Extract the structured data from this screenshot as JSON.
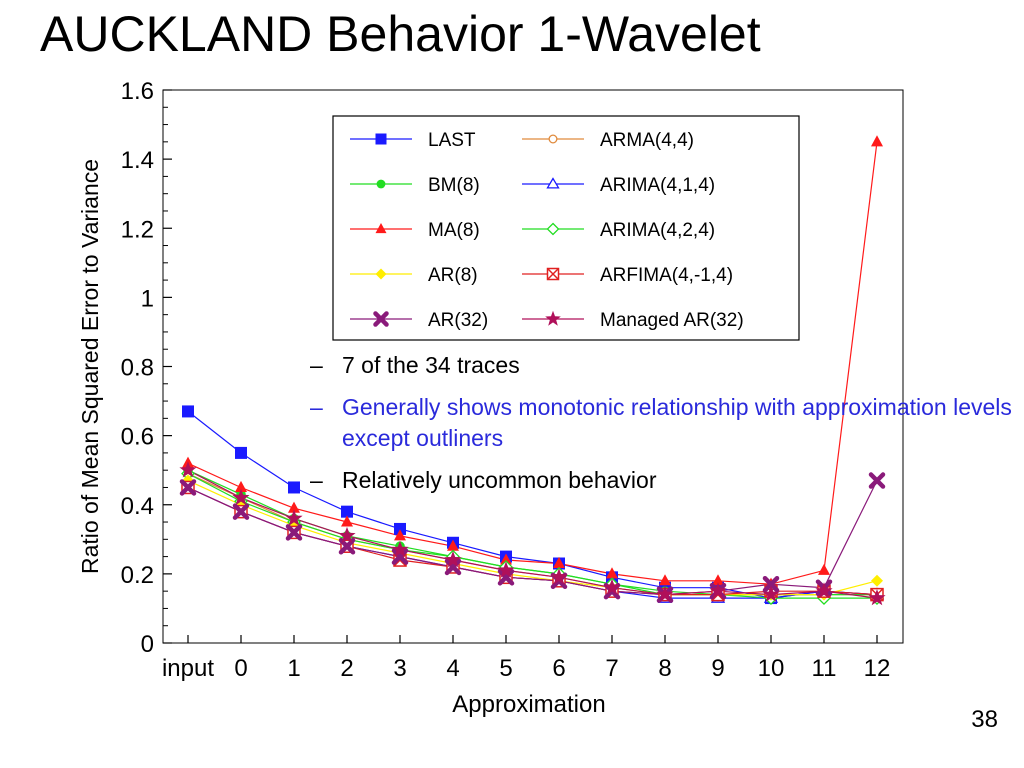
{
  "slide": {
    "title": "AUCKLAND Behavior 1-Wavelet",
    "page_number": "38",
    "bullets": [
      {
        "text": "7 of the 34 traces",
        "color": "#000000"
      },
      {
        "text": "Generally shows monotonic relationship with approximation levels except outliners",
        "color": "#2a2adb"
      },
      {
        "text": "Relatively uncommon behavior",
        "color": "#000000"
      }
    ]
  },
  "chart_data": {
    "type": "line",
    "title": "",
    "xlabel": "Approximation",
    "ylabel": "Ratio of Mean Squared Error to Variance",
    "categories": [
      "input",
      "0",
      "1",
      "2",
      "3",
      "4",
      "5",
      "6",
      "7",
      "8",
      "9",
      "10",
      "11",
      "12"
    ],
    "ylim": [
      0,
      1.6
    ],
    "yticks": [
      "0",
      "0.2",
      "0.4",
      "0.6",
      "0.8",
      "1",
      "1.2",
      "1.4",
      "1.6"
    ],
    "grid": false,
    "legend_position": "top-right",
    "series": [
      {
        "name": "LAST",
        "color": "#1a1aff",
        "marker": "square",
        "values": [
          0.67,
          0.55,
          0.45,
          0.38,
          0.33,
          0.29,
          0.25,
          0.23,
          0.19,
          0.16,
          0.16,
          0.13,
          0.15,
          0.14
        ]
      },
      {
        "name": "ARMA(4,4)",
        "color": "#e08a3c",
        "marker": "circle-open",
        "values": [
          0.49,
          0.42,
          0.35,
          0.3,
          0.27,
          0.24,
          0.21,
          0.19,
          0.16,
          0.14,
          0.14,
          0.14,
          0.14,
          0.14
        ]
      },
      {
        "name": "BM(8)",
        "color": "#22dd22",
        "marker": "circle",
        "values": [
          0.5,
          0.43,
          0.36,
          0.31,
          0.28,
          0.25,
          0.22,
          0.2,
          0.17,
          0.15,
          0.14,
          0.14,
          0.14,
          0.14
        ]
      },
      {
        "name": "ARIMA(4,1,4)",
        "color": "#1a1aff",
        "marker": "triangle-open",
        "values": [
          0.45,
          0.38,
          0.32,
          0.28,
          0.25,
          0.22,
          0.19,
          0.18,
          0.15,
          0.13,
          0.13,
          0.13,
          0.15,
          0.14
        ]
      },
      {
        "name": "MA(8)",
        "color": "#ff1a1a",
        "marker": "triangle",
        "values": [
          0.52,
          0.45,
          0.39,
          0.35,
          0.31,
          0.28,
          0.24,
          0.23,
          0.2,
          0.18,
          0.18,
          0.17,
          0.21,
          1.45
        ]
      },
      {
        "name": "ARIMA(4,2,4)",
        "color": "#22dd22",
        "marker": "diamond-open",
        "values": [
          0.49,
          0.41,
          0.35,
          0.3,
          0.27,
          0.25,
          0.22,
          0.2,
          0.17,
          0.14,
          0.14,
          0.13,
          0.13,
          0.13
        ]
      },
      {
        "name": "AR(8)",
        "color": "#ffee00",
        "marker": "diamond",
        "values": [
          0.47,
          0.4,
          0.34,
          0.29,
          0.26,
          0.23,
          0.2,
          0.18,
          0.16,
          0.14,
          0.14,
          0.14,
          0.14,
          0.18
        ]
      },
      {
        "name": "ARFIMA(4,-1,4)",
        "color": "#e02020",
        "marker": "x-square",
        "values": [
          0.45,
          0.38,
          0.32,
          0.28,
          0.24,
          0.22,
          0.19,
          0.18,
          0.15,
          0.14,
          0.14,
          0.15,
          0.15,
          0.14
        ]
      },
      {
        "name": "AR(32)",
        "color": "#8a1a7a",
        "marker": "x",
        "values": [
          0.45,
          0.38,
          0.32,
          0.28,
          0.25,
          0.22,
          0.19,
          0.18,
          0.15,
          0.14,
          0.15,
          0.17,
          0.16,
          0.47
        ]
      },
      {
        "name": "Managed AR(32)",
        "color": "#b0105a",
        "marker": "star",
        "values": [
          0.5,
          0.42,
          0.36,
          0.31,
          0.27,
          0.24,
          0.21,
          0.19,
          0.16,
          0.14,
          0.15,
          0.14,
          0.15,
          0.13
        ]
      }
    ]
  }
}
